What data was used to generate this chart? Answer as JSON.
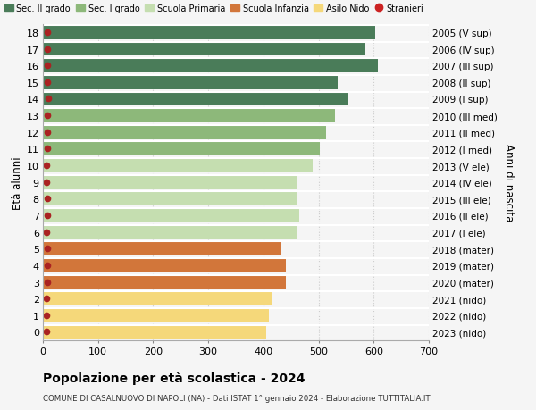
{
  "ages": [
    18,
    17,
    16,
    15,
    14,
    13,
    12,
    11,
    10,
    9,
    8,
    7,
    6,
    5,
    4,
    3,
    2,
    1,
    0
  ],
  "right_labels": [
    "2005 (V sup)",
    "2006 (IV sup)",
    "2007 (III sup)",
    "2008 (II sup)",
    "2009 (I sup)",
    "2010 (III med)",
    "2011 (II med)",
    "2012 (I med)",
    "2013 (V ele)",
    "2014 (IV ele)",
    "2015 (III ele)",
    "2016 (II ele)",
    "2017 (I ele)",
    "2018 (mater)",
    "2019 (mater)",
    "2020 (mater)",
    "2021 (nido)",
    "2022 (nido)",
    "2023 (nido)"
  ],
  "bar_values": [
    603,
    585,
    608,
    535,
    553,
    530,
    513,
    503,
    490,
    460,
    460,
    465,
    462,
    432,
    440,
    440,
    415,
    410,
    405
  ],
  "stranieri_values": [
    8,
    8,
    8,
    8,
    10,
    8,
    8,
    8,
    6,
    6,
    8,
    8,
    6,
    8,
    8,
    8,
    6,
    6,
    6
  ],
  "bar_colors": [
    "#4a7c59",
    "#4a7c59",
    "#4a7c59",
    "#4a7c59",
    "#4a7c59",
    "#8db87a",
    "#8db87a",
    "#8db87a",
    "#c5deb0",
    "#c5deb0",
    "#c5deb0",
    "#c5deb0",
    "#c5deb0",
    "#d2763a",
    "#d2763a",
    "#d2763a",
    "#f5d87a",
    "#f5d87a",
    "#f5d87a"
  ],
  "legend_labels": [
    "Sec. II grado",
    "Sec. I grado",
    "Scuola Primaria",
    "Scuola Infanzia",
    "Asilo Nido",
    "Stranieri"
  ],
  "legend_colors": [
    "#4a7c59",
    "#8db87a",
    "#c5deb0",
    "#d2763a",
    "#f5d87a",
    "#cc2222"
  ],
  "title": "Popolazione per età scolastica - 2024",
  "subtitle": "COMUNE DI CASALNUOVO DI NAPOLI (NA) - Dati ISTAT 1° gennaio 2024 - Elaborazione TUTTITALIA.IT",
  "ylabel_left": "Età alunni",
  "ylabel_right": "Anni di nascita",
  "xlim": [
    0,
    700
  ],
  "xticks": [
    0,
    100,
    200,
    300,
    400,
    500,
    600,
    700
  ],
  "background_color": "#f5f5f5",
  "grid_color": "#cccccc",
  "stranieri_color": "#aa2222",
  "bar_height": 0.85
}
